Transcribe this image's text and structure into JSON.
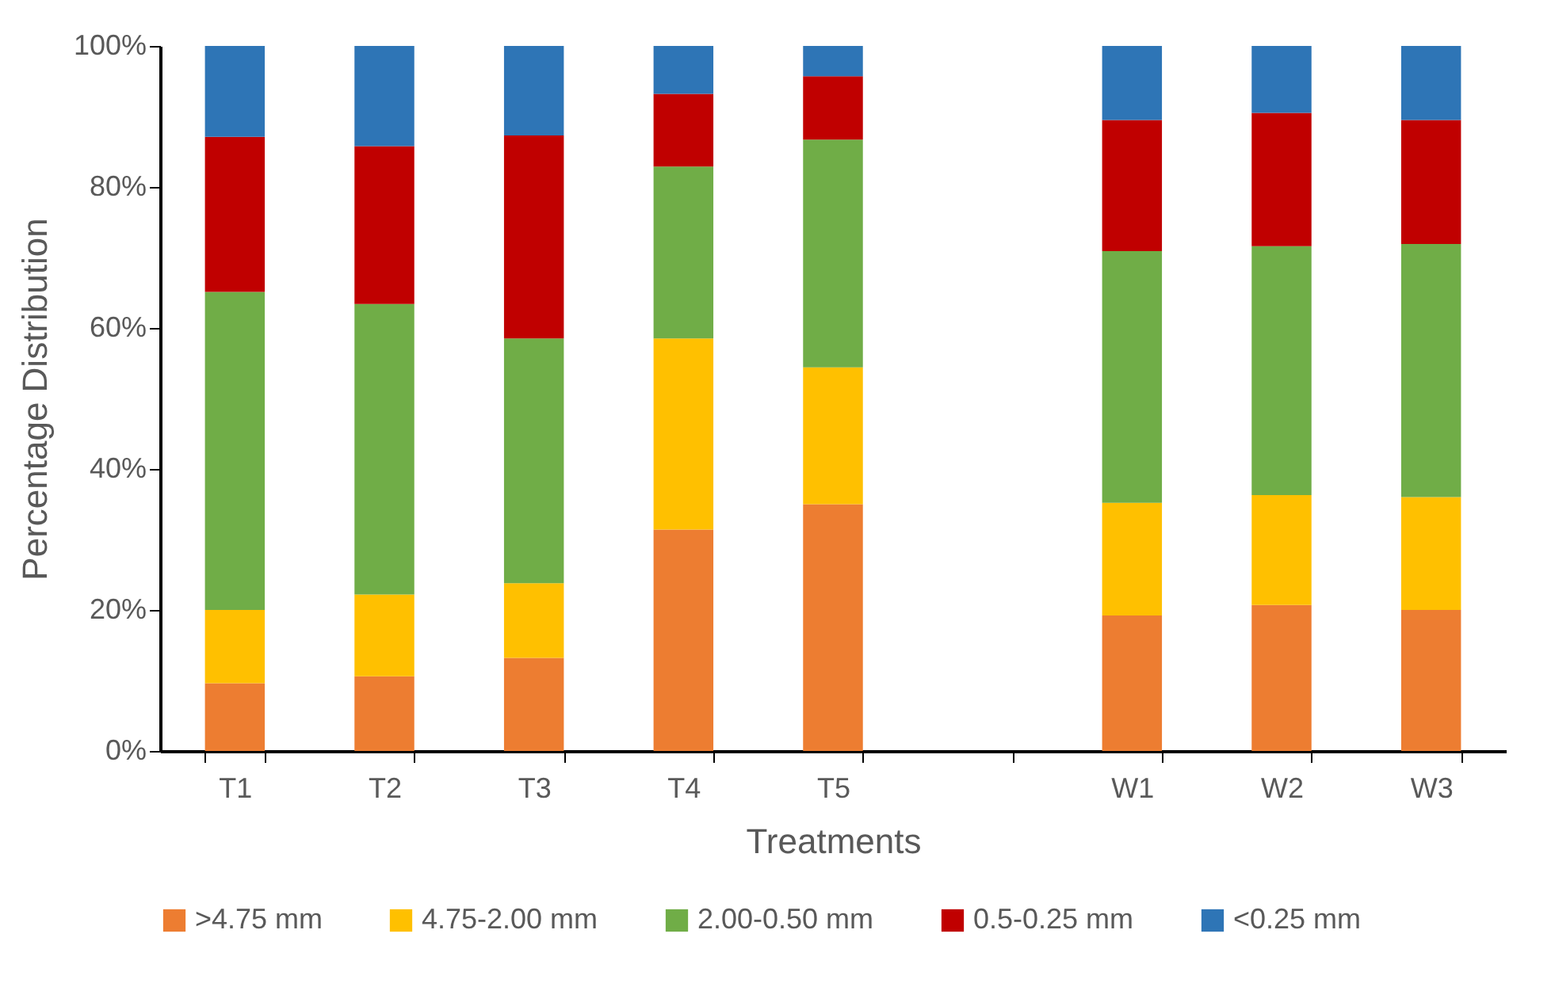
{
  "chart_data": {
    "type": "bar",
    "stacked": true,
    "xlabel": "Treatments",
    "ylabel": "Percentage Distribution",
    "categories": [
      "T1",
      "T2",
      "T3",
      "T4",
      "T5",
      null,
      "W1",
      "W2",
      "W3"
    ],
    "ylim": [
      0,
      100
    ],
    "yticks": [
      {
        "value": 0,
        "label": "0%"
      },
      {
        "value": 20,
        "label": "20%"
      },
      {
        "value": 40,
        "label": "40%"
      },
      {
        "value": 60,
        "label": "60%"
      },
      {
        "value": 80,
        "label": "80%"
      },
      {
        "value": 100,
        "label": "100%"
      }
    ],
    "grid": false,
    "legend": "bottom",
    "series": [
      {
        "name": ">4.75 mm",
        "color": "#ed7d31",
        "values": [
          9.6,
          10.6,
          13.2,
          31.4,
          35.0,
          null,
          19.2,
          20.7,
          20.0
        ]
      },
      {
        "name": "4.75-2.00 mm",
        "color": "#ffc000",
        "values": [
          10.4,
          11.6,
          10.6,
          27.1,
          19.4,
          null,
          16.0,
          15.6,
          16.0
        ]
      },
      {
        "name": "2.00-0.50 mm",
        "color": "#70ad47",
        "values": [
          45.1,
          41.2,
          34.7,
          24.4,
          32.3,
          null,
          35.7,
          35.3,
          35.9
        ]
      },
      {
        "name": "0.5-0.25 mm",
        "color": "#c00000",
        "values": [
          22.0,
          22.4,
          28.8,
          10.3,
          9.0,
          null,
          18.6,
          18.9,
          17.6
        ]
      },
      {
        "name": "<0.25 mm",
        "color": "#2e75b6",
        "values": [
          12.9,
          14.2,
          12.7,
          6.8,
          4.3,
          null,
          10.5,
          9.5,
          10.5
        ]
      }
    ]
  }
}
